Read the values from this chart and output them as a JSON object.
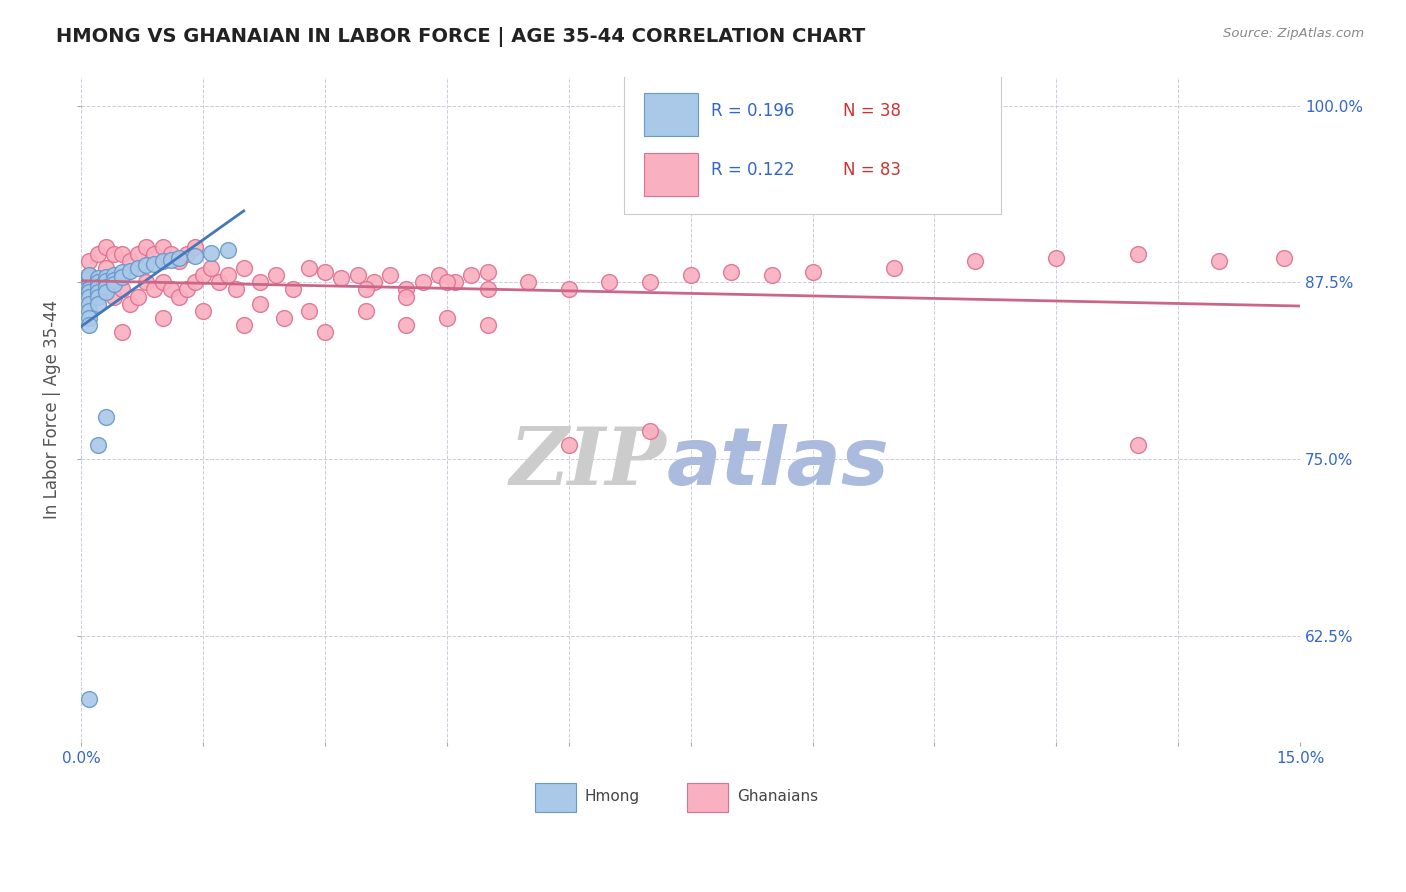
{
  "title": "HMONG VS GHANAIAN IN LABOR FORCE | AGE 35-44 CORRELATION CHART",
  "source_text": "Source: ZipAtlas.com",
  "ylabel": "In Labor Force | Age 35-44",
  "xlim": [
    0.0,
    0.15
  ],
  "ylim": [
    0.55,
    1.02
  ],
  "xtick_labels": [
    "0.0%",
    "",
    "",
    "",
    "",
    "",
    "",
    "",
    "",
    "",
    "15.0%"
  ],
  "xticks": [
    0.0,
    0.015,
    0.03,
    0.045,
    0.06,
    0.075,
    0.09,
    0.105,
    0.12,
    0.135,
    0.15
  ],
  "ytick_labels_right": [
    "62.5%",
    "75.0%",
    "87.5%",
    "100.0%"
  ],
  "yticks_right": [
    0.625,
    0.75,
    0.875,
    1.0
  ],
  "hmong_color": "#aac8e8",
  "hmong_edge_color": "#6699cc",
  "ghanaian_color": "#f9b0c0",
  "ghanaian_edge_color": "#e07090",
  "hmong_R": 0.196,
  "hmong_N": 38,
  "ghanaian_R": 0.122,
  "ghanaian_N": 83,
  "trend_hmong_color": "#4477bb",
  "trend_ghanaian_color": "#cc6688",
  "watermark_zip": "ZIP",
  "watermark_atlas": "atlas",
  "watermark_color_zip": "#cccccc",
  "watermark_color_atlas": "#aabbdd",
  "background_color": "#ffffff",
  "grid_color": "#ccccdd",
  "title_color": "#222222",
  "axis_label_color": "#555555",
  "tick_color": "#3366cc",
  "legend_R_color": "#3366cc",
  "legend_N_color": "#cc3333",
  "hmong_scatter_x": [
    0.001,
    0.001,
    0.001,
    0.001,
    0.001,
    0.001,
    0.001,
    0.001,
    0.001,
    0.001,
    0.002,
    0.002,
    0.002,
    0.002,
    0.002,
    0.002,
    0.003,
    0.003,
    0.003,
    0.003,
    0.004,
    0.004,
    0.004,
    0.005,
    0.005,
    0.006,
    0.007,
    0.008,
    0.009,
    0.01,
    0.011,
    0.012,
    0.014,
    0.016,
    0.018,
    0.002,
    0.003,
    0.001
  ],
  "hmong_scatter_y": [
    0.875,
    0.878,
    0.88,
    0.87,
    0.868,
    0.865,
    0.86,
    0.855,
    0.85,
    0.845,
    0.878,
    0.875,
    0.872,
    0.868,
    0.865,
    0.86,
    0.879,
    0.876,
    0.872,
    0.868,
    0.88,
    0.877,
    0.874,
    0.882,
    0.879,
    0.883,
    0.885,
    0.887,
    0.888,
    0.89,
    0.891,
    0.892,
    0.894,
    0.896,
    0.898,
    0.76,
    0.78,
    0.58
  ],
  "ghanaian_scatter_x": [
    0.001,
    0.001,
    0.002,
    0.002,
    0.003,
    0.003,
    0.003,
    0.004,
    0.004,
    0.005,
    0.005,
    0.006,
    0.006,
    0.007,
    0.007,
    0.008,
    0.008,
    0.009,
    0.009,
    0.01,
    0.01,
    0.011,
    0.011,
    0.012,
    0.012,
    0.013,
    0.013,
    0.014,
    0.014,
    0.015,
    0.016,
    0.017,
    0.018,
    0.019,
    0.02,
    0.022,
    0.024,
    0.026,
    0.028,
    0.03,
    0.032,
    0.034,
    0.036,
    0.038,
    0.04,
    0.042,
    0.044,
    0.046,
    0.048,
    0.05,
    0.022,
    0.028,
    0.035,
    0.04,
    0.045,
    0.05,
    0.055,
    0.06,
    0.065,
    0.07,
    0.075,
    0.08,
    0.085,
    0.09,
    0.1,
    0.11,
    0.12,
    0.13,
    0.14,
    0.148,
    0.005,
    0.01,
    0.015,
    0.02,
    0.025,
    0.03,
    0.035,
    0.04,
    0.045,
    0.05,
    0.06,
    0.07,
    0.13
  ],
  "ghanaian_scatter_y": [
    0.88,
    0.89,
    0.875,
    0.895,
    0.87,
    0.885,
    0.9,
    0.865,
    0.895,
    0.87,
    0.895,
    0.86,
    0.89,
    0.865,
    0.895,
    0.875,
    0.9,
    0.87,
    0.895,
    0.875,
    0.9,
    0.87,
    0.895,
    0.865,
    0.89,
    0.87,
    0.895,
    0.875,
    0.9,
    0.88,
    0.885,
    0.875,
    0.88,
    0.87,
    0.885,
    0.875,
    0.88,
    0.87,
    0.885,
    0.882,
    0.878,
    0.88,
    0.875,
    0.88,
    0.87,
    0.875,
    0.88,
    0.875,
    0.88,
    0.882,
    0.86,
    0.855,
    0.87,
    0.865,
    0.875,
    0.87,
    0.875,
    0.87,
    0.875,
    0.875,
    0.88,
    0.882,
    0.88,
    0.882,
    0.885,
    0.89,
    0.892,
    0.895,
    0.89,
    0.892,
    0.84,
    0.85,
    0.855,
    0.845,
    0.85,
    0.84,
    0.855,
    0.845,
    0.85,
    0.845,
    0.76,
    0.77,
    0.76
  ]
}
